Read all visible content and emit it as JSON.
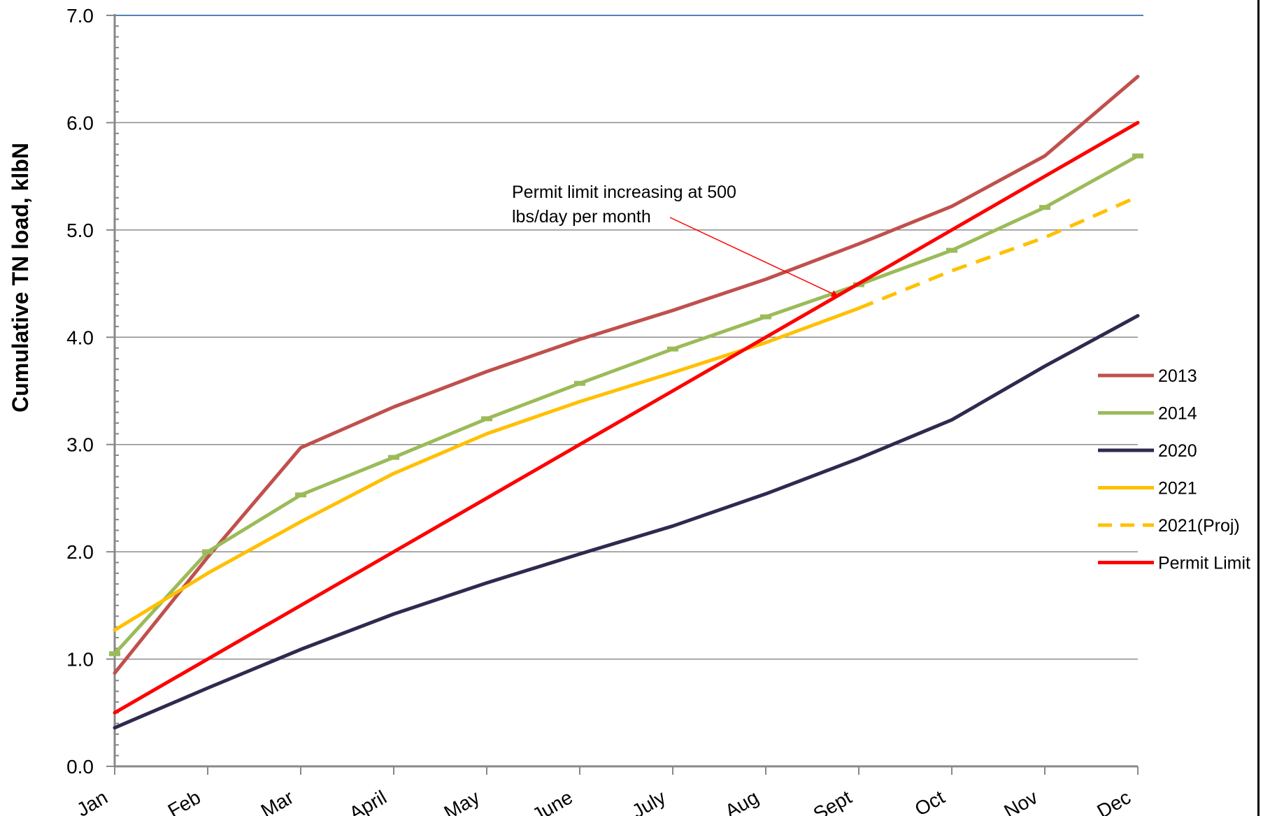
{
  "chart_data": {
    "type": "line",
    "ylabel": "Cumulative TN load, klbN",
    "xlabel": "",
    "categories": [
      "Jan",
      "Feb",
      "Mar",
      "April",
      "May",
      "June",
      "July",
      "Aug",
      "Sept",
      "Oct",
      "Nov",
      "Dec"
    ],
    "ylim": [
      0,
      7
    ],
    "yticks": [
      "0.0",
      "1.0",
      "2.0",
      "3.0",
      "4.0",
      "5.0",
      "6.0",
      "7.0"
    ],
    "grid": true,
    "legend_position": "right",
    "series": [
      {
        "name": "2013",
        "color": "#c0504d",
        "dashed": false,
        "markers": false,
        "values": [
          0.87,
          1.95,
          2.97,
          3.35,
          3.68,
          3.98,
          4.25,
          4.54,
          4.87,
          5.22,
          5.69,
          6.43
        ]
      },
      {
        "name": "2014",
        "color": "#9bbb59",
        "dashed": false,
        "markers": true,
        "values": [
          1.05,
          2.0,
          2.53,
          2.88,
          3.24,
          3.57,
          3.89,
          4.19,
          4.49,
          4.81,
          5.21,
          5.69
        ]
      },
      {
        "name": "2020",
        "color": "#2e2a4f",
        "dashed": false,
        "markers": false,
        "values": [
          0.36,
          0.73,
          1.09,
          1.42,
          1.71,
          1.98,
          2.24,
          2.54,
          2.87,
          3.23,
          3.73,
          4.2
        ]
      },
      {
        "name": "2021",
        "color": "#ffc000",
        "dashed": false,
        "markers": false,
        "values": [
          1.27,
          1.8,
          2.28,
          2.73,
          3.1,
          3.4,
          3.67,
          3.95,
          4.27,
          null,
          null,
          null
        ]
      },
      {
        "name": "2021(Proj)",
        "color": "#ffc000",
        "dashed": true,
        "markers": false,
        "values": [
          null,
          null,
          null,
          null,
          null,
          null,
          null,
          null,
          4.27,
          4.62,
          4.93,
          5.31
        ]
      },
      {
        "name": "Permit Limit",
        "color": "#ff0000",
        "dashed": false,
        "markers": false,
        "values": [
          0.5,
          1.0,
          1.5,
          2.0,
          2.5,
          3.0,
          3.5,
          4.0,
          4.5,
          5.0,
          5.5,
          6.0
        ]
      }
    ],
    "annotations": [
      {
        "text_lines": [
          "Permit limit increasing at 500",
          "lbs/day per month"
        ],
        "target_category": "Sept",
        "target_value": 4.37,
        "color": "#ff0000"
      }
    ]
  }
}
